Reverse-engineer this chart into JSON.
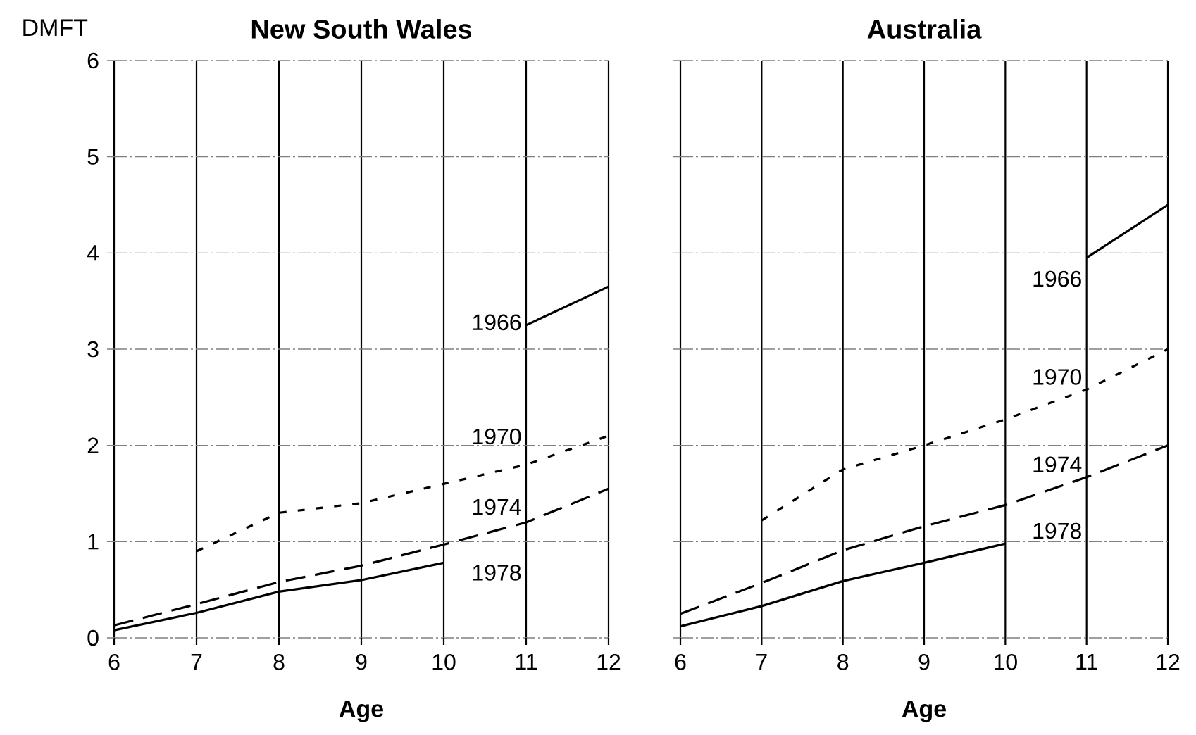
{
  "chart_data": [
    {
      "type": "line",
      "title": "New South Wales",
      "xlabel": "Age",
      "ylabel": "DMFT",
      "xlim": [
        6,
        12
      ],
      "ylim": [
        0,
        6
      ],
      "xticks": [
        6,
        7,
        8,
        9,
        10,
        11,
        12
      ],
      "yticks": [
        0,
        1,
        2,
        3,
        4,
        5,
        6
      ],
      "grid": true,
      "series": [
        {
          "name": "1966",
          "color": "#000000",
          "line_style": "solid",
          "x": [
            11,
            12
          ],
          "values": [
            3.25,
            3.65
          ]
        },
        {
          "name": "1970",
          "color": "#000000",
          "line_style": "dotted",
          "x": [
            7,
            8,
            9,
            10,
            11,
            12
          ],
          "values": [
            0.9,
            1.3,
            1.4,
            1.6,
            1.8,
            2.1
          ]
        },
        {
          "name": "1974",
          "color": "#000000",
          "line_style": "dashed",
          "x": [
            6,
            7,
            8,
            9,
            10,
            11,
            12
          ],
          "values": [
            0.13,
            0.35,
            0.58,
            0.75,
            0.97,
            1.2,
            1.55
          ]
        },
        {
          "name": "1978",
          "color": "#000000",
          "line_style": "solid",
          "x": [
            6,
            7,
            8,
            9,
            10
          ],
          "values": [
            0.08,
            0.26,
            0.48,
            0.6,
            0.78
          ]
        }
      ]
    },
    {
      "type": "line",
      "title": "Australia",
      "xlabel": "Age",
      "xlim": [
        6,
        12
      ],
      "ylim": [
        0,
        6
      ],
      "xticks": [
        6,
        7,
        8,
        9,
        10,
        11,
        12
      ],
      "yticks": [
        0,
        1,
        2,
        3,
        4,
        5,
        6
      ],
      "grid": true,
      "tick_labels": "x",
      "series": [
        {
          "name": "1966",
          "color": "#000000",
          "line_style": "solid",
          "x": [
            11,
            12
          ],
          "values": [
            3.95,
            4.5
          ]
        },
        {
          "name": "1970",
          "color": "#000000",
          "line_style": "dotted",
          "x": [
            7,
            8,
            9,
            10,
            11,
            12
          ],
          "values": [
            1.22,
            1.75,
            2.0,
            2.27,
            2.58,
            3.0
          ]
        },
        {
          "name": "1974",
          "color": "#000000",
          "line_style": "dashed",
          "x": [
            6,
            7,
            8,
            9,
            10,
            11,
            12
          ],
          "values": [
            0.25,
            0.57,
            0.91,
            1.16,
            1.38,
            1.67,
            2.0
          ]
        },
        {
          "name": "1978",
          "color": "#000000",
          "line_style": "solid",
          "x": [
            6,
            7,
            8,
            9,
            10
          ],
          "values": [
            0.12,
            0.33,
            0.59,
            0.78,
            0.98
          ]
        }
      ]
    }
  ]
}
